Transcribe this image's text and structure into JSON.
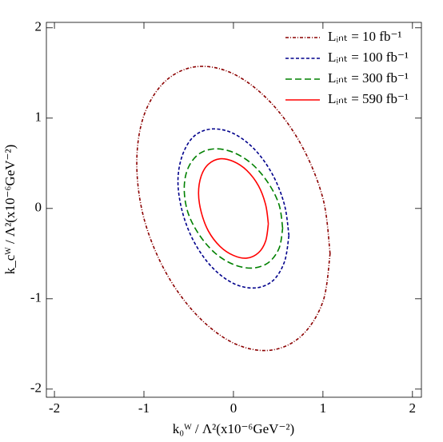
{
  "chart_data": {
    "type": "line",
    "x_label": "k₀ᵂ / Λ²(x10⁻⁶GeV⁻²)",
    "y_label": "k_cᵂ / Λ²(x10⁻⁶GeV⁻²)",
    "xlim": [
      -2.09,
      2.1
    ],
    "ylim": [
      -2.09,
      2.06
    ],
    "xticks": [
      -2,
      -1,
      0,
      1,
      2
    ],
    "yticks": [
      -2,
      -1,
      0,
      1,
      2
    ],
    "legend": "upper right",
    "series": [
      {
        "name": "Lᵢₙₜ = 10 fb⁻¹",
        "color": "#8b0000",
        "linestyle": "dashdot",
        "x": [
          1.08,
          1.0,
          0.76,
          0.41,
          0,
          -0.41,
          -0.76,
          -1.0,
          -1.08,
          -1.0,
          -0.76,
          -0.41,
          0,
          0.41,
          0.76,
          1.0,
          1.08
        ],
        "y": [
          -0.5,
          0.11,
          0.7,
          1.18,
          1.49,
          1.57,
          1.41,
          1.03,
          0.5,
          -0.11,
          -0.7,
          -1.18,
          -1.49,
          -1.57,
          -1.41,
          -1.03,
          -0.5
        ]
      },
      {
        "name": "Lᵢₙₜ = 100 fb⁻¹",
        "color": "#00008b",
        "linestyle": "dashed",
        "x": [
          0.62,
          0.57,
          0.44,
          0.24,
          0,
          -0.24,
          -0.44,
          -0.57,
          -0.62,
          -0.57,
          -0.44,
          -0.24,
          0,
          0.24,
          0.44,
          0.57,
          0.62
        ],
        "y": [
          -0.3,
          0.04,
          0.37,
          0.65,
          0.83,
          0.88,
          0.8,
          0.59,
          0.3,
          -0.04,
          -0.37,
          -0.65,
          -0.83,
          -0.88,
          -0.8,
          -0.59,
          -0.3
        ]
      },
      {
        "name": "Lᵢₙₜ = 300 fb⁻¹",
        "color": "#008000",
        "linestyle": "longdash",
        "x": [
          0.55,
          0.51,
          0.39,
          0.21,
          0,
          -0.21,
          -0.39,
          -0.51,
          -0.55,
          -0.51,
          -0.39,
          -0.21,
          0,
          0.21,
          0.39,
          0.51,
          0.55
        ],
        "y": [
          -0.22,
          0.04,
          0.28,
          0.49,
          0.62,
          0.66,
          0.6,
          0.44,
          0.22,
          -0.04,
          -0.28,
          -0.49,
          -0.62,
          -0.66,
          -0.6,
          -0.44,
          -0.22
        ]
      },
      {
        "name": "Lᵢₙₜ = 590 fb⁻¹",
        "color": "#ff0000",
        "linestyle": "solid",
        "x": [
          0.39,
          0.36,
          0.28,
          0.15,
          0,
          -0.15,
          -0.28,
          -0.36,
          -0.39,
          -0.36,
          -0.28,
          -0.15,
          0,
          0.15,
          0.28,
          0.36,
          0.39
        ],
        "y": [
          -0.17,
          0.04,
          0.25,
          0.42,
          0.52,
          0.55,
          0.49,
          0.36,
          0.17,
          -0.04,
          -0.25,
          -0.42,
          -0.52,
          -0.55,
          -0.49,
          -0.36,
          -0.17
        ]
      }
    ]
  }
}
